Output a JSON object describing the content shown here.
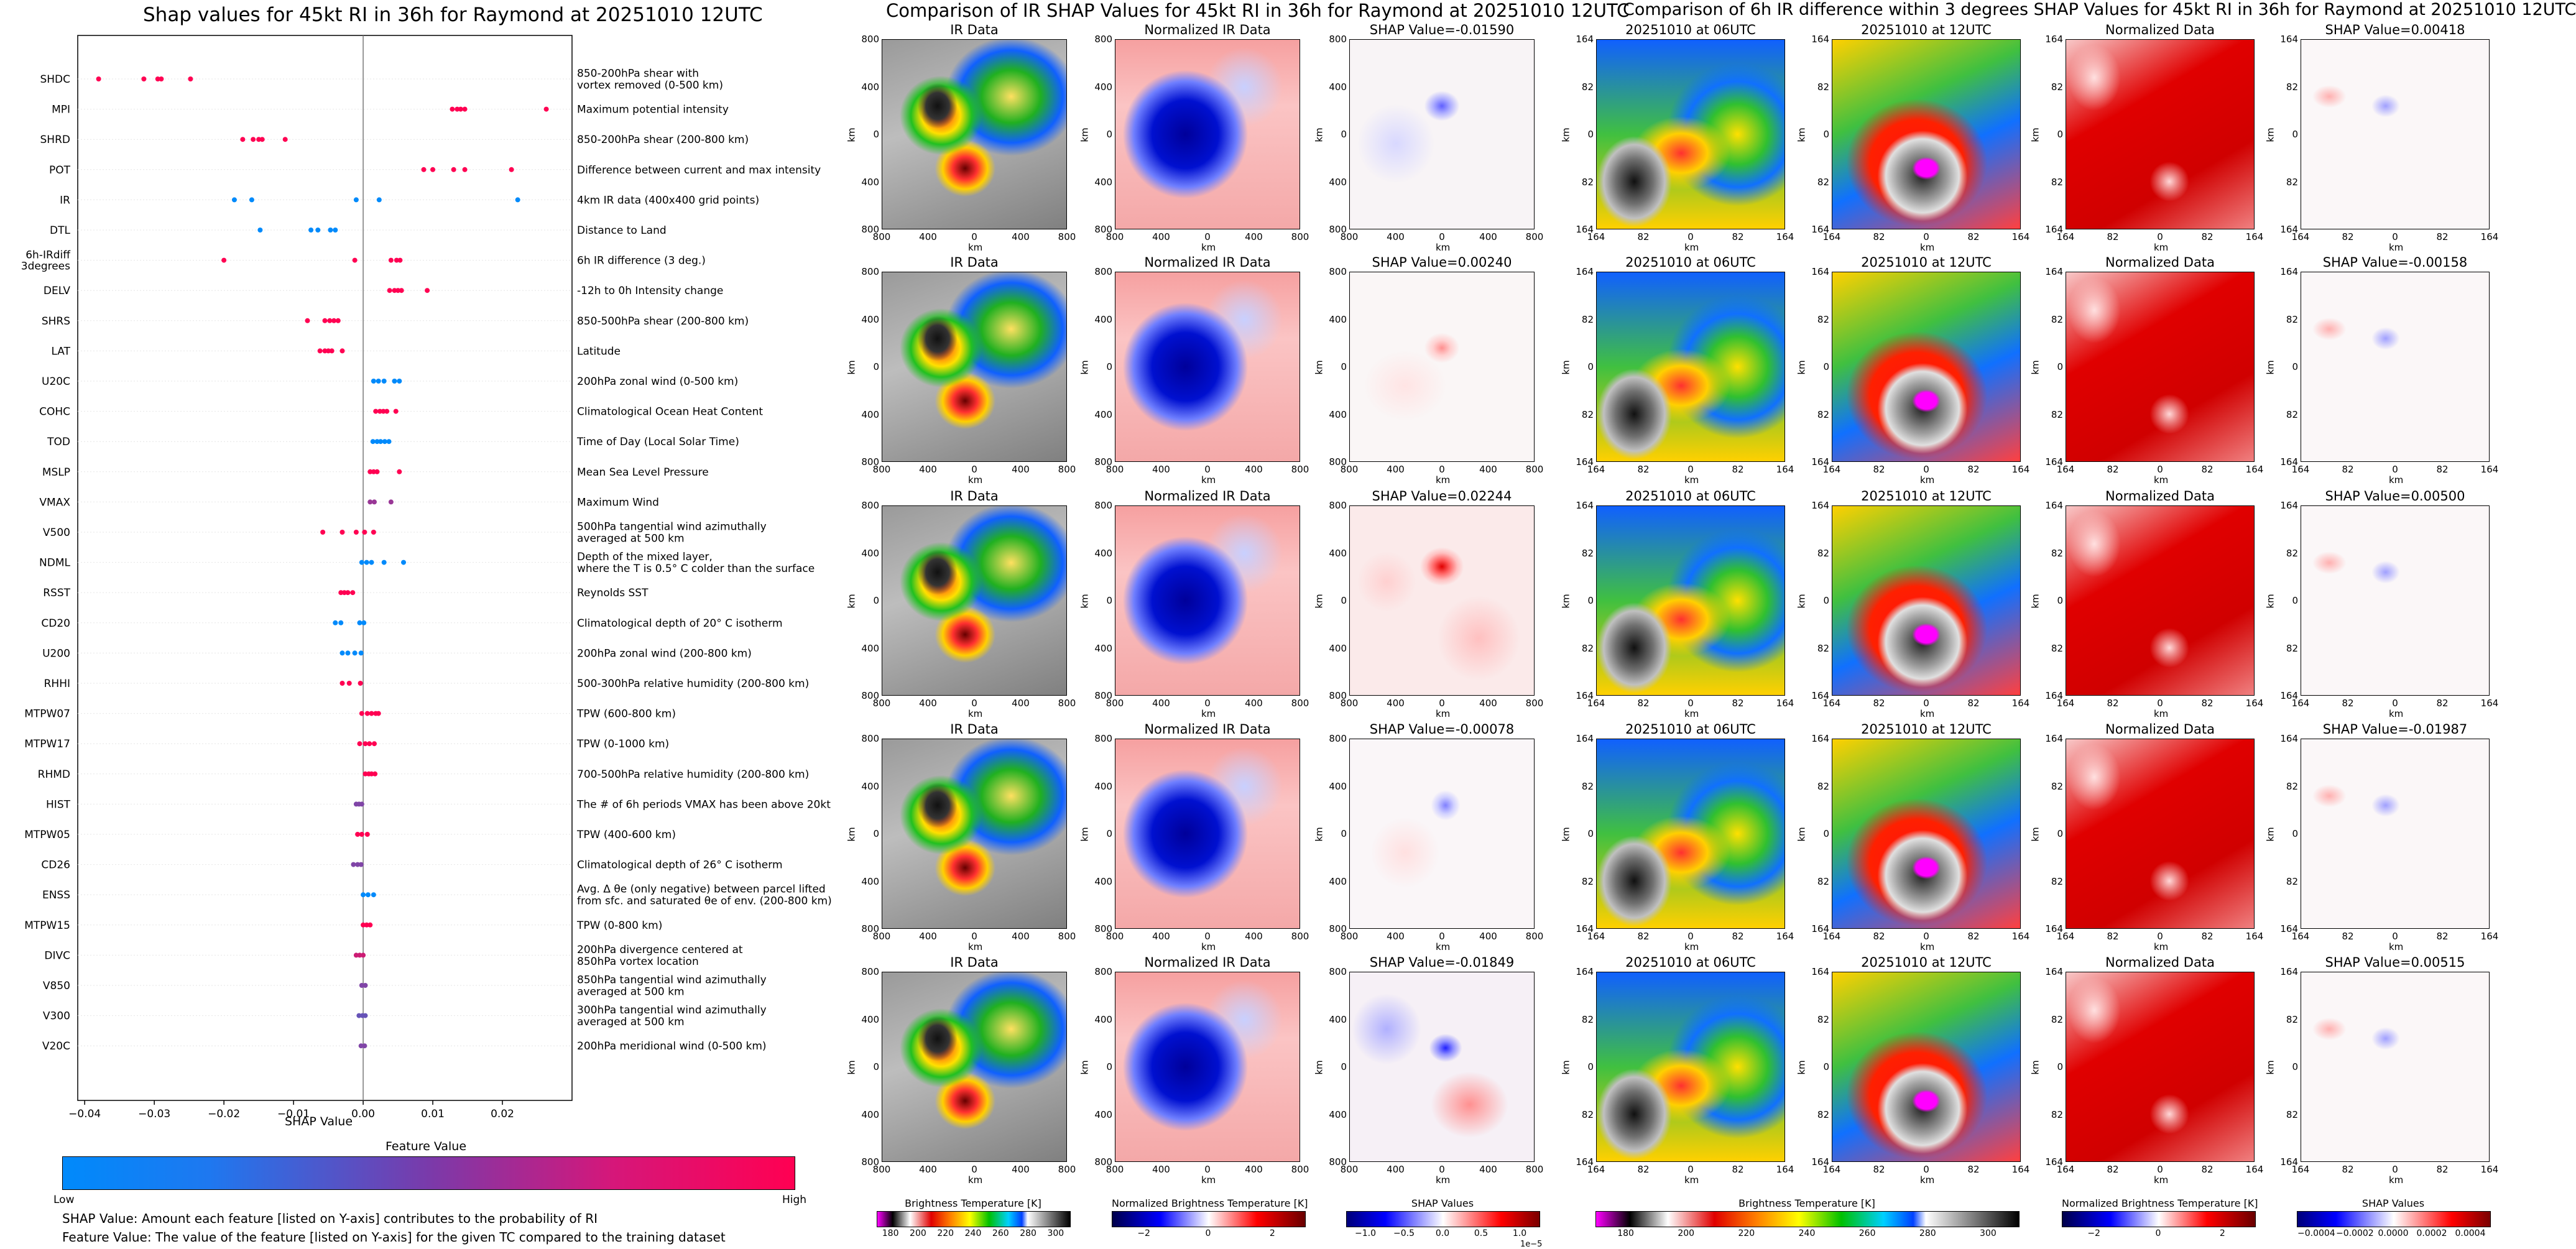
{
  "left_title": "Shap values for 45kt RI in 36h for Raymond at 20251010 12UTC",
  "mid_title": "Comparison of IR SHAP Values for 45kt RI in 36h for Raymond at 20251010 12UTC",
  "right_title": "Comparison of 6h IR difference within 3 degrees SHAP Values for 45kt RI in 36h for Raymond at 20251010 12UTC",
  "shap_axis_label": "SHAP Value",
  "feature_value_label": "Feature Value",
  "low_label": "Low",
  "high_label": "High",
  "note1": "SHAP Value: Amount each feature [listed on Y-axis] contributes to the probability of RI",
  "note2": "Feature Value: The value of the feature [listed on Y-axis] for the given TC compared to the training dataset",
  "colors": {
    "low": "#008afb",
    "high": "#ff0052",
    "ir_neg": "#0000c8",
    "ir_pos": "#dc0000"
  },
  "chart_data": [
    {
      "type": "scatter",
      "title": "Shap values for 45kt RI in 36h for Raymond at 20251010 12UTC",
      "xlabel": "SHAP Value",
      "ylabel": "",
      "xlim": [
        -0.041,
        0.03
      ],
      "xticks": [
        -0.04,
        -0.03,
        -0.02,
        -0.01,
        0.0,
        0.01,
        0.02
      ],
      "xtick_labels": [
        "−0.04",
        "−0.03",
        "−0.02",
        "−0.01",
        "0.00",
        "0.01",
        "0.02"
      ],
      "colorbar": {
        "label": "Feature Value",
        "low": "Low",
        "high": "High"
      },
      "features": [
        {
          "name": "SHDC",
          "desc": [
            "850-200hPa shear with",
            "vortex removed (0-500 km)"
          ],
          "shap": [
            -0.038,
            -0.0315,
            -0.0295,
            -0.029,
            -0.0248
          ],
          "fv": [
            1,
            1,
            1,
            1,
            1
          ]
        },
        {
          "name": "MPI",
          "desc": [
            "Maximum potential intensity"
          ],
          "shap": [
            0.0128,
            0.0135,
            0.014,
            0.0146,
            0.0263
          ],
          "fv": [
            1,
            1,
            1,
            1,
            1
          ]
        },
        {
          "name": "SHRD",
          "desc": [
            "850-200hPa shear (200-800 km)"
          ],
          "shap": [
            -0.0173,
            -0.0158,
            -0.015,
            -0.0145,
            -0.0112
          ],
          "fv": [
            1,
            1,
            1,
            1,
            1
          ]
        },
        {
          "name": "POT",
          "desc": [
            "Difference between current and max intensity"
          ],
          "shap": [
            0.0087,
            0.01,
            0.013,
            0.0146,
            0.0213
          ],
          "fv": [
            1,
            1,
            1,
            1,
            1
          ]
        },
        {
          "name": "IR",
          "desc": [
            "4km IR data (400x400 grid points)"
          ],
          "shap": [
            -0.0185,
            -0.016,
            -0.001,
            0.0023,
            0.0222
          ],
          "fv": [
            0,
            0,
            0,
            0,
            0
          ]
        },
        {
          "name": "DTL",
          "desc": [
            "Distance to Land"
          ],
          "shap": [
            -0.0148,
            -0.0075,
            -0.0065,
            -0.0047,
            -0.004
          ],
          "fv": [
            0,
            0,
            0,
            0,
            0
          ]
        },
        {
          "name": "6h-IRdiff\n3degrees",
          "label_lines": [
            "6h-IRdiff",
            "3degrees"
          ],
          "desc": [
            "6h IR difference (3 deg.)"
          ],
          "shap": [
            -0.02,
            -0.0012,
            0.004,
            0.0048,
            0.0053
          ],
          "fv": [
            1,
            1,
            1,
            1,
            1
          ]
        },
        {
          "name": "DELV",
          "desc": [
            "-12h to 0h Intensity change"
          ],
          "shap": [
            0.0038,
            0.0045,
            0.005,
            0.0055,
            0.0092
          ],
          "fv": [
            1,
            1,
            1,
            1,
            1
          ]
        },
        {
          "name": "SHRS",
          "desc": [
            "850-500hPa shear (200-800 km)"
          ],
          "shap": [
            -0.008,
            -0.0055,
            -0.0048,
            -0.0042,
            -0.0036
          ],
          "fv": [
            1,
            1,
            1,
            1,
            1
          ]
        },
        {
          "name": "LAT",
          "desc": [
            "Latitude"
          ],
          "shap": [
            -0.0062,
            -0.0055,
            -0.005,
            -0.0045,
            -0.003
          ],
          "fv": [
            1,
            1,
            1,
            1,
            1
          ]
        },
        {
          "name": "U20C",
          "desc": [
            "200hPa zonal wind (0-500 km)"
          ],
          "shap": [
            0.0015,
            0.0022,
            0.003,
            0.0045,
            0.0052
          ],
          "fv": [
            0,
            0,
            0,
            0,
            0
          ]
        },
        {
          "name": "COHC",
          "desc": [
            "Climatological Ocean Heat Content"
          ],
          "shap": [
            0.0018,
            0.0024,
            0.0029,
            0.0034,
            0.0047
          ],
          "fv": [
            1,
            1,
            1,
            1,
            1
          ]
        },
        {
          "name": "TOD",
          "desc": [
            "Time of Day (Local Solar Time)"
          ],
          "shap": [
            0.0014,
            0.002,
            0.0025,
            0.0031,
            0.0037
          ],
          "fv": [
            0,
            0,
            0,
            0,
            0
          ]
        },
        {
          "name": "MSLP",
          "desc": [
            "Mean Sea Level Pressure"
          ],
          "shap": [
            0.001,
            0.0015,
            0.002,
            0.0052
          ],
          "fv": [
            1,
            1,
            1,
            1
          ]
        },
        {
          "name": "VMAX",
          "desc": [
            "Maximum Wind"
          ],
          "shap": [
            0.001,
            0.0016,
            0.004
          ],
          "fv": [
            0.6,
            0.6,
            0.6
          ]
        },
        {
          "name": "V500",
          "desc": [
            "500hPa tangential wind azimuthally",
            "averaged at 500 km"
          ],
          "shap": [
            -0.0058,
            -0.003,
            -0.001,
            0.0002,
            0.0015
          ],
          "fv": [
            1,
            1,
            1,
            1,
            1
          ]
        },
        {
          "name": "NDML",
          "desc": [
            "Depth of the mixed layer,",
            "where the T is 0.5° C colder than the surface"
          ],
          "shap": [
            -0.0002,
            0.0005,
            0.0012,
            0.003,
            0.0058
          ],
          "fv": [
            0,
            0,
            0,
            0,
            0
          ]
        },
        {
          "name": "RSST",
          "desc": [
            "Reynolds SST"
          ],
          "shap": [
            -0.0032,
            -0.0027,
            -0.0022,
            -0.0015
          ],
          "fv": [
            1,
            1,
            1,
            1
          ]
        },
        {
          "name": "CD20",
          "desc": [
            "Climatological depth of 20° C isotherm"
          ],
          "shap": [
            -0.004,
            -0.0032,
            -0.0005,
            0.0001
          ],
          "fv": [
            0,
            0,
            0,
            0
          ]
        },
        {
          "name": "U200",
          "desc": [
            "200hPa zonal wind (200-800 km)"
          ],
          "shap": [
            -0.003,
            -0.0022,
            -0.0012,
            -0.0003
          ],
          "fv": [
            0,
            0,
            0,
            0
          ]
        },
        {
          "name": "RHHI",
          "desc": [
            "500-300hPa relative humidity (200-800 km)"
          ],
          "shap": [
            -0.003,
            -0.002,
            -0.0004
          ],
          "fv": [
            1,
            1,
            1
          ]
        },
        {
          "name": "MTPW07",
          "desc": [
            "TPW (600-800 km)"
          ],
          "shap": [
            -0.0002,
            0.0006,
            0.0012,
            0.0018,
            0.0022
          ],
          "fv": [
            1,
            1,
            1,
            1,
            1
          ]
        },
        {
          "name": "MTPW17",
          "desc": [
            "TPW (0-1000 km)"
          ],
          "shap": [
            -0.0005,
            0.0003,
            0.0009,
            0.0016
          ],
          "fv": [
            1,
            1,
            1,
            1
          ]
        },
        {
          "name": "RHMD",
          "desc": [
            "700-500hPa relative humidity (200-800 km)"
          ],
          "shap": [
            0.0003,
            0.0008,
            0.0012,
            0.0017
          ],
          "fv": [
            1,
            1,
            1,
            1
          ]
        },
        {
          "name": "HIST",
          "desc": [
            "The # of 6h periods VMAX has been above 20kt"
          ],
          "shap": [
            -0.001,
            -0.0006,
            -0.0002
          ],
          "fv": [
            0.5,
            0.5,
            0.5
          ]
        },
        {
          "name": "MTPW05",
          "desc": [
            "TPW (400-600 km)"
          ],
          "shap": [
            -0.0008,
            -0.0002,
            0.0006
          ],
          "fv": [
            1,
            1,
            1
          ]
        },
        {
          "name": "CD26",
          "desc": [
            "Climatological depth of 26° C isotherm"
          ],
          "shap": [
            -0.0014,
            -0.0008,
            -0.0003
          ],
          "fv": [
            0.5,
            0.5,
            0.5
          ]
        },
        {
          "name": "ENSS",
          "desc": [
            "Avg. Δ θe (only negative) between parcel lifted",
            "from sfc. and saturated θe of env. (200-800 km)"
          ],
          "shap": [
            0.0,
            0.0007,
            0.0015
          ],
          "fv": [
            0,
            0,
            0
          ]
        },
        {
          "name": "MTPW15",
          "desc": [
            "TPW (0-800 km)"
          ],
          "shap": [
            0.0,
            0.0005,
            0.001
          ],
          "fv": [
            1,
            1,
            1
          ]
        },
        {
          "name": "DIVC",
          "desc": [
            "200hPa divergence centered at",
            "850hPa vortex location"
          ],
          "shap": [
            -0.001,
            -0.0005,
            0.0
          ],
          "fv": [
            0.8,
            0.8,
            0.8
          ]
        },
        {
          "name": "V850",
          "desc": [
            "850hPa tangential wind azimuthally",
            "averaged at 500 km"
          ],
          "shap": [
            -0.0002,
            0.0003
          ],
          "fv": [
            0.5,
            0.5
          ]
        },
        {
          "name": "V300",
          "desc": [
            "300hPa tangential wind azimuthally",
            "averaged at 500 km"
          ],
          "shap": [
            -0.0006,
            -0.0001,
            0.0003
          ],
          "fv": [
            0.4,
            0.4,
            0.4
          ]
        },
        {
          "name": "V20C",
          "desc": [
            "200hPa meridional wind (0-500 km)"
          ],
          "shap": [
            -0.0003,
            0.0002
          ],
          "fv": [
            0.5,
            0.5
          ]
        }
      ]
    },
    {
      "type": "heatmap",
      "title": "Comparison of IR SHAP Values for 45kt RI in 36h for Raymond at 20251010 12UTC",
      "column_titles": [
        "IR Data",
        "Normalized IR Data"
      ],
      "shap_titles": [
        "SHAP Value=-0.01590",
        "SHAP Value=0.00240",
        "SHAP Value=0.02244",
        "SHAP Value=-0.00078",
        "SHAP Value=-0.01849"
      ],
      "shap_values": [
        -0.0159,
        0.0024,
        0.02244,
        -0.00078,
        -0.01849
      ],
      "xlabel": "km",
      "ylabel": "km",
      "xtick_labels": [
        "800",
        "400",
        "0",
        "400",
        "800"
      ],
      "ytick_labels": [
        "800",
        "400",
        "0",
        "400",
        "800"
      ],
      "colorbars": [
        {
          "label": "Brightness Temperature [K]",
          "ticks": [
            "180",
            "200",
            "220",
            "240",
            "260",
            "280",
            "300"
          ]
        },
        {
          "label": "Normalized Brightness Temperature [K]",
          "ticks": [
            "−2",
            "0",
            "2"
          ]
        },
        {
          "label": "SHAP Values",
          "ticks": [
            "−1.0",
            "−0.5",
            "0.0",
            "0.5",
            "1.0"
          ],
          "offset": "1e−5"
        }
      ]
    },
    {
      "type": "heatmap",
      "title": "Comparison of 6h IR difference within 3 degrees SHAP Values for 45kt RI in 36h for Raymond at 20251010 12UTC",
      "column_titles": [
        "20251010 at 06UTC",
        "20251010 at 12UTC",
        "Normalized Data"
      ],
      "shap_titles": [
        "SHAP Value=0.00418",
        "SHAP Value=-0.00158",
        "SHAP Value=0.00500",
        "SHAP Value=-0.01987",
        "SHAP Value=0.00515"
      ],
      "shap_values": [
        0.00418,
        -0.00158,
        0.005,
        -0.01987,
        0.00515
      ],
      "xlabel": "km",
      "ylabel": "km",
      "xtick_labels": [
        "164",
        "82",
        "0",
        "82",
        "164"
      ],
      "ytick_labels": [
        "164",
        "82",
        "0",
        "82",
        "164"
      ],
      "colorbars": [
        {
          "label": "Brightness Temperature [K]",
          "ticks": [
            "180",
            "200",
            "220",
            "240",
            "260",
            "280",
            "300"
          ]
        },
        {
          "label": "Normalized Brightness Temperature [K]",
          "ticks": [
            "−2",
            "0",
            "2"
          ]
        },
        {
          "label": "SHAP Values",
          "ticks": [
            "−0.0004",
            "−0.0002",
            "0.0000",
            "0.0002",
            "0.0004"
          ]
        }
      ]
    }
  ]
}
